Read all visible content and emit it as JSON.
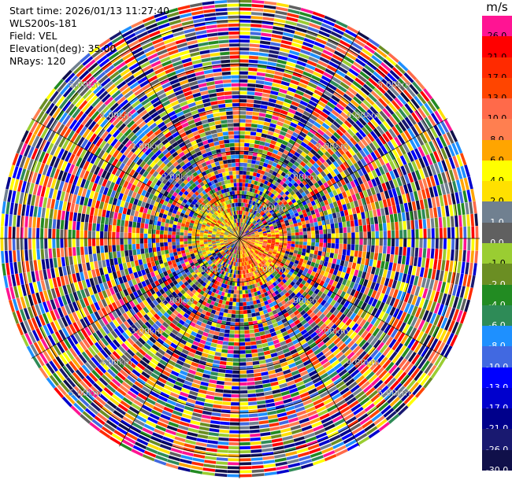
{
  "header": {
    "start_time": "Start time: 2026/01/13 11:27:40",
    "instrument": "WLS200s-181",
    "field": "Field: VEL",
    "elevation": "Elevation(deg): 35.00",
    "nrays": "NRays: 120"
  },
  "colorbar": {
    "unit": "m/s",
    "levels": [
      {
        "label": "26.0",
        "color": "#ff1493"
      },
      {
        "label": "21.0",
        "color": "#ff0000"
      },
      {
        "label": "17.0",
        "color": "#ff2a00"
      },
      {
        "label": "13.0",
        "color": "#ff4500"
      },
      {
        "label": "10.0",
        "color": "#ff6a4a"
      },
      {
        "label": "8.0",
        "color": "#ff7f50"
      },
      {
        "label": "6.0",
        "color": "#ffa500"
      },
      {
        "label": "4.0",
        "color": "#ffff00"
      },
      {
        "label": "2.0",
        "color": "#ffe000"
      },
      {
        "label": "1.0",
        "color": "#708090"
      },
      {
        "label": "0.0",
        "color": "#606060"
      },
      {
        "label": "-1.0",
        "color": "#9acd32"
      },
      {
        "label": "-2.0",
        "color": "#6b8e23"
      },
      {
        "label": "-4.0",
        "color": "#228b22"
      },
      {
        "label": "-6.0",
        "color": "#2e8b57"
      },
      {
        "label": "-8.0",
        "color": "#1e90ff"
      },
      {
        "label": "-10.0",
        "color": "#4169e1"
      },
      {
        "label": "-13.0",
        "color": "#0000ff"
      },
      {
        "label": "-17.0",
        "color": "#0000cd"
      },
      {
        "label": "-21.0",
        "color": "#00008b"
      },
      {
        "label": "-26.0",
        "color": "#191970"
      },
      {
        "label": "-30.0",
        "color": "#10104a"
      }
    ]
  },
  "chart_data": {
    "type": "heatmap",
    "projection": "polar-ppi",
    "field": "VEL",
    "elevation_deg": 35.0,
    "nrays": 120,
    "range_rings_km": [
      1.0,
      2.0,
      3.0,
      4.0,
      5.0
    ],
    "range_ring_labels": [
      "1.00km",
      "2.00km",
      "3.00km",
      "4.00km",
      "5.00km"
    ],
    "max_range_km": 5.5,
    "value_range": [
      -30.0,
      26.0
    ],
    "unit": "m/s"
  }
}
